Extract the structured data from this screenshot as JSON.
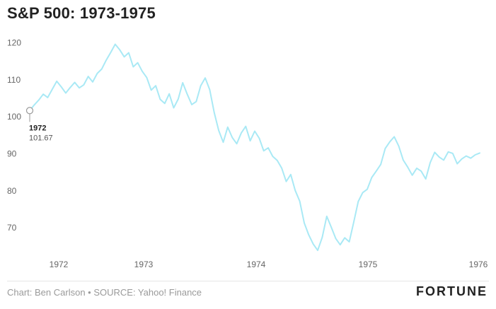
{
  "header": {
    "title": "S&P 500: 1973-1975"
  },
  "footer": {
    "credit": "Chart: Ben Carlson • SOURCE: Yahoo! Finance",
    "brand": "FORTUNE"
  },
  "colors": {
    "line": "#a9e9f5",
    "axis_text": "#666666",
    "title": "#222222"
  },
  "chart_data": {
    "type": "line",
    "title": "S&P 500: 1973-1975",
    "xlabel": "",
    "ylabel": "",
    "ylim": [
      62,
      122
    ],
    "xlim": [
      1972.0,
      1976.0
    ],
    "yticks": [
      70,
      80,
      90,
      100,
      110,
      120
    ],
    "xticks": [
      "1972",
      "1973",
      "1974",
      "1975",
      "1976"
    ],
    "grid": false,
    "annotation": {
      "label": "1972",
      "value": "101.67",
      "x": 1972.0,
      "y": 101.67
    },
    "series": [
      {
        "x": [
          1972.0,
          1972.04,
          1972.08,
          1972.12,
          1972.16,
          1972.2,
          1972.24,
          1972.28,
          1972.32,
          1972.36,
          1972.4,
          1972.44,
          1972.48,
          1972.52,
          1972.56,
          1972.6,
          1972.64,
          1972.68,
          1972.72,
          1972.76,
          1972.8,
          1972.84,
          1972.88,
          1972.92,
          1972.96,
          1973.0,
          1973.04,
          1973.08,
          1973.12,
          1973.16,
          1973.2,
          1973.24,
          1973.28,
          1973.32,
          1973.36,
          1973.4,
          1973.44,
          1973.48,
          1973.52,
          1973.56,
          1973.6,
          1973.64,
          1973.68,
          1973.72,
          1973.76,
          1973.8,
          1973.84,
          1973.88,
          1973.92,
          1973.96,
          1974.0,
          1974.04,
          1974.08,
          1974.12,
          1974.16,
          1974.2,
          1974.24,
          1974.28,
          1974.32,
          1974.36,
          1974.4,
          1974.44,
          1974.48,
          1974.52,
          1974.56,
          1974.6,
          1974.64,
          1974.68,
          1974.72,
          1974.76,
          1974.8,
          1974.84,
          1974.88,
          1974.92,
          1974.96,
          1975.0,
          1975.04,
          1975.08,
          1975.12,
          1975.16,
          1975.2,
          1975.24,
          1975.28,
          1975.32,
          1975.36,
          1975.4,
          1975.44,
          1975.48,
          1975.52,
          1975.56,
          1975.6,
          1975.64,
          1975.68,
          1975.72,
          1975.76,
          1975.8,
          1975.84,
          1975.88,
          1975.92,
          1975.96,
          1976.0
        ],
        "values": [
          101.67,
          103.2,
          104.5,
          106.1,
          105.2,
          107.4,
          109.6,
          108.1,
          106.4,
          107.9,
          109.3,
          107.8,
          108.6,
          110.9,
          109.4,
          111.7,
          112.9,
          115.3,
          117.4,
          119.6,
          118.1,
          116.2,
          117.3,
          113.5,
          114.6,
          112.3,
          110.6,
          107.2,
          108.4,
          104.7,
          103.6,
          106.2,
          102.4,
          104.8,
          109.2,
          106.1,
          103.3,
          104.1,
          108.4,
          110.5,
          107.3,
          101.1,
          96.3,
          93.1,
          97.2,
          94.4,
          92.7,
          95.6,
          97.4,
          93.5,
          96.1,
          94.2,
          90.8,
          91.6,
          89.3,
          88.2,
          86.1,
          82.5,
          84.4,
          80.1,
          77.2,
          71.3,
          68.1,
          65.6,
          63.9,
          67.4,
          73.1,
          70.2,
          67.1,
          65.4,
          67.3,
          66.2,
          71.5,
          77.1,
          79.5,
          80.4,
          83.6,
          85.3,
          87.1,
          91.4,
          93.2,
          94.6,
          92.1,
          88.3,
          86.4,
          84.2,
          86.1,
          85.3,
          83.2,
          87.6,
          90.4,
          89.1,
          88.3,
          90.5,
          90.1,
          87.3,
          88.6,
          89.4,
          88.8,
          89.7,
          90.2
        ]
      }
    ]
  }
}
